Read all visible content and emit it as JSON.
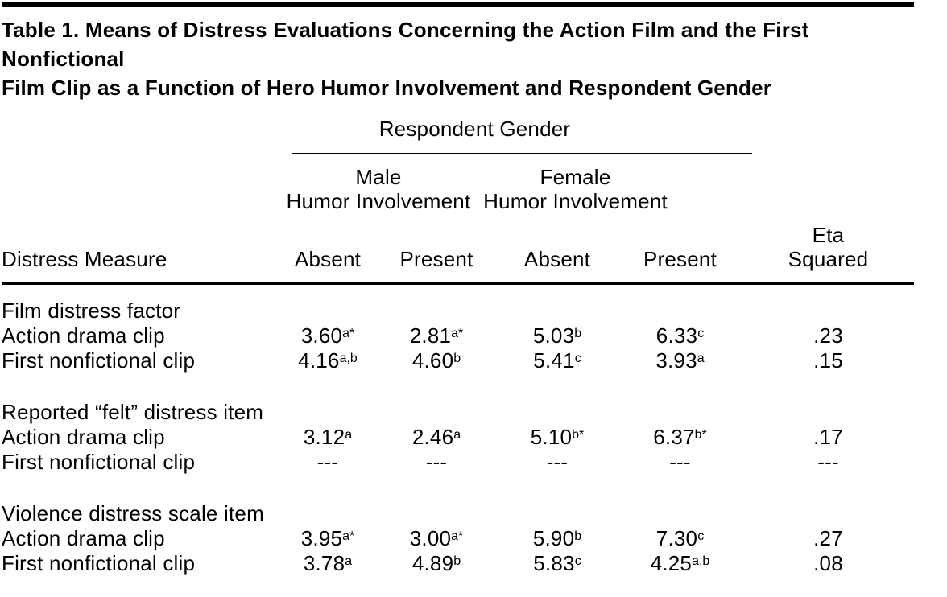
{
  "colors": {
    "background": "#ffffff",
    "text": "#000000",
    "rule": "#000000"
  },
  "title": {
    "line1": "Table 1. Means of Distress Evaluations Concerning the Action Film and the First Nonfictional",
    "line2": "Film Clip as a Function of Hero Humor Involvement and Respondent Gender"
  },
  "table": {
    "header": {
      "row_header": "Distress Measure",
      "gender_spanner": "Respondent Gender",
      "male_group": "Male",
      "male_sub": "Humor Involvement",
      "female_group": "Female",
      "female_sub": "Humor Involvement",
      "col_labels": [
        "Absent",
        "Present",
        "Absent",
        "Present"
      ],
      "eta_line1": "Eta",
      "eta_line2": "Squared"
    },
    "sections": [
      {
        "section_label": "Film distress factor",
        "rows": [
          {
            "label": "Action drama clip",
            "cells": [
              {
                "v": "3.60",
                "sup": "a*"
              },
              {
                "v": "2.81",
                "sup": "a*"
              },
              {
                "v": "5.03",
                "sup": "b"
              },
              {
                "v": "6.33",
                "sup": "c"
              }
            ],
            "eta": ".23"
          },
          {
            "label": "First nonfictional clip",
            "cells": [
              {
                "v": "4.16",
                "sup": "a,b"
              },
              {
                "v": "4.60",
                "sup": "b"
              },
              {
                "v": "5.41",
                "sup": "c"
              },
              {
                "v": "3.93",
                "sup": "a"
              }
            ],
            "eta": ".15"
          }
        ]
      },
      {
        "section_label": "Reported “felt” distress item",
        "rows": [
          {
            "label": "Action drama clip",
            "cells": [
              {
                "v": "3.12",
                "sup": "a"
              },
              {
                "v": "2.46",
                "sup": "a"
              },
              {
                "v": "5.10",
                "sup": "b*"
              },
              {
                "v": "6.37",
                "sup": "b*"
              }
            ],
            "eta": ".17"
          },
          {
            "label": "First nonfictional clip",
            "cells": [
              {
                "v": "---",
                "sup": ""
              },
              {
                "v": "---",
                "sup": ""
              },
              {
                "v": "---",
                "sup": ""
              },
              {
                "v": "---",
                "sup": ""
              }
            ],
            "eta": "---"
          }
        ]
      },
      {
        "section_label": "Violence distress scale item",
        "rows": [
          {
            "label": "Action drama clip",
            "cells": [
              {
                "v": "3.95",
                "sup": "a*"
              },
              {
                "v": "3.00",
                "sup": "a*"
              },
              {
                "v": "5.90",
                "sup": "b"
              },
              {
                "v": "7.30",
                "sup": "c"
              }
            ],
            "eta": ".27"
          },
          {
            "label": "First nonfictional clip",
            "cells": [
              {
                "v": "3.78",
                "sup": "a"
              },
              {
                "v": "4.89",
                "sup": "b"
              },
              {
                "v": "5.83",
                "sup": "c"
              },
              {
                "v": "4.25",
                "sup": "a,b"
              }
            ],
            "eta": ".08"
          }
        ]
      }
    ]
  }
}
